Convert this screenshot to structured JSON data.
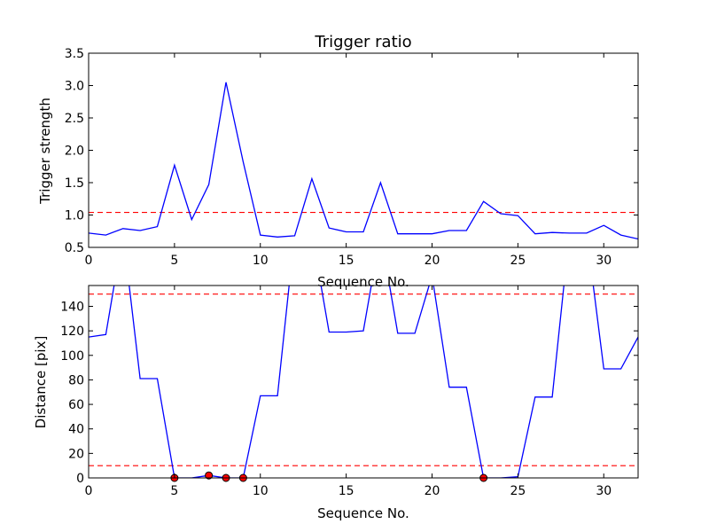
{
  "chart_data": [
    {
      "type": "line",
      "title": "Trigger ratio",
      "xlabel": "Sequence No.",
      "ylabel": "Trigger strength",
      "xlim": [
        0,
        32
      ],
      "ylim": [
        0.5,
        3.5
      ],
      "xticks": [
        0,
        5,
        10,
        15,
        20,
        25,
        30
      ],
      "yticks": [
        0.5,
        1.0,
        1.5,
        2.0,
        2.5,
        3.0,
        3.5
      ],
      "ytick_decimals": 1,
      "line_color": "#0000ff",
      "threshold_color": "#ff0000",
      "thresholds": [
        1.04
      ],
      "series": [
        {
          "x": [
            0,
            1,
            2,
            3,
            4,
            5,
            6,
            7,
            8,
            9,
            10,
            11,
            12,
            13,
            14,
            15,
            16,
            17,
            18,
            19,
            20,
            21,
            22,
            23,
            24,
            25,
            26,
            27,
            28,
            29,
            30,
            31,
            32
          ],
          "y": [
            0.72,
            0.69,
            0.79,
            0.76,
            0.82,
            1.77,
            0.93,
            1.47,
            3.05,
            1.82,
            0.69,
            0.66,
            0.68,
            1.56,
            0.8,
            0.74,
            0.74,
            1.5,
            0.71,
            0.71,
            0.71,
            0.76,
            0.76,
            1.21,
            1.02,
            0.99,
            0.71,
            0.73,
            0.72,
            0.72,
            0.84,
            0.69,
            0.63
          ]
        }
      ]
    },
    {
      "type": "line",
      "title": "",
      "xlabel": "Sequence No.",
      "ylabel": "Distance [pix]",
      "xlim": [
        0,
        32
      ],
      "ylim": [
        0,
        157
      ],
      "xticks": [
        0,
        5,
        10,
        15,
        20,
        25,
        30
      ],
      "yticks": [
        0,
        20,
        40,
        60,
        80,
        100,
        120,
        140
      ],
      "ytick_decimals": 0,
      "line_color": "#0000ff",
      "threshold_color": "#ff0000",
      "marker_color": "#ff0000",
      "thresholds": [
        10,
        150
      ],
      "series": [
        {
          "x": [
            0,
            1,
            2,
            3,
            4,
            5,
            6,
            7,
            8,
            9,
            10,
            11,
            12,
            13,
            14,
            15,
            16,
            17,
            18,
            19,
            20,
            21,
            22,
            23,
            24,
            25,
            26,
            27,
            28,
            29,
            30,
            31,
            32
          ],
          "y": [
            115,
            117,
            200,
            81,
            81,
            0,
            0,
            2,
            0,
            0,
            67,
            67,
            200,
            200,
            119,
            119,
            120,
            200,
            118,
            118,
            165,
            74,
            74,
            0,
            0,
            1,
            66,
            66,
            200,
            200,
            89,
            89,
            115
          ]
        }
      ],
      "markers": {
        "x": [
          5,
          7,
          8,
          9,
          23
        ],
        "y": [
          0,
          2,
          0,
          0,
          0
        ]
      }
    }
  ]
}
